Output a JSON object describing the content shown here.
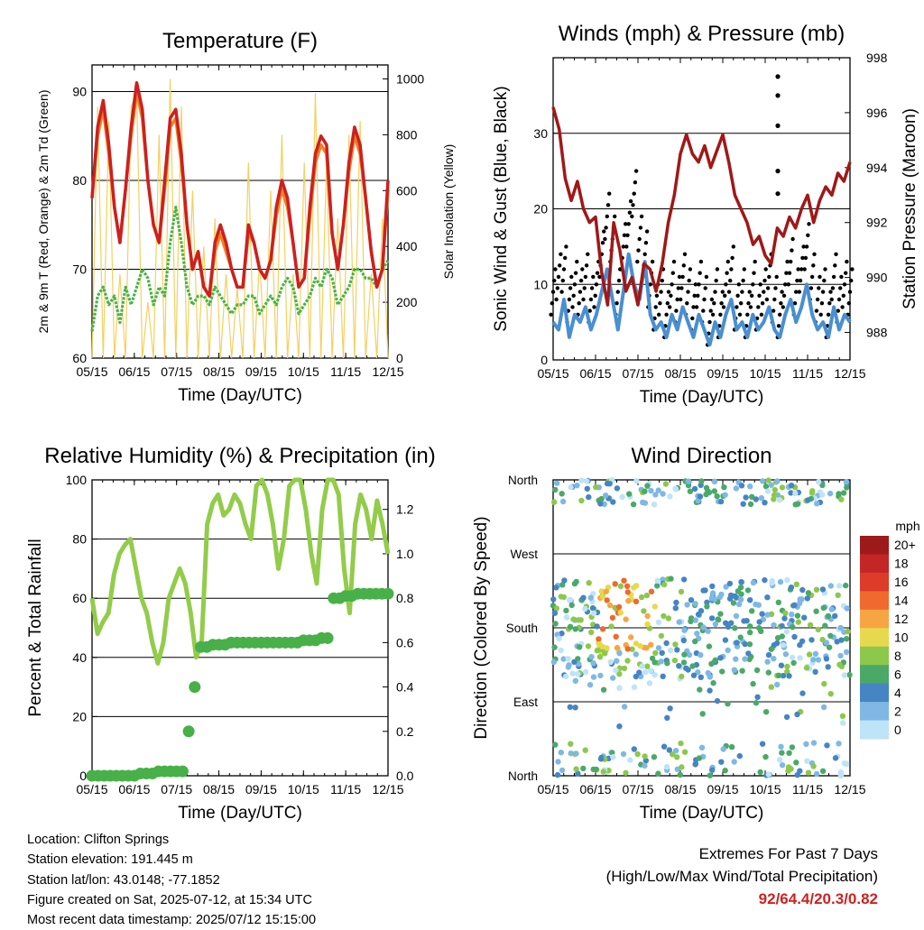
{
  "chart_data": [
    {
      "type": "line",
      "title": "Temperature (F)",
      "xlabel": "Time (Day/UTC)",
      "ylabel": "2m & 9m T (Red, Orange) & 2m Td (Green)",
      "y2label": "Solar Insolation (Yellow)",
      "x_ticks": [
        "05/15",
        "06/15",
        "07/15",
        "08/15",
        "09/15",
        "10/15",
        "11/15",
        "12/15"
      ],
      "ylim": [
        60,
        93
      ],
      "y_ticks": [
        60,
        70,
        80,
        90
      ],
      "y2lim": [
        0,
        1050
      ],
      "y2_ticks": [
        0,
        200,
        400,
        600,
        800,
        1000
      ],
      "grid_y": [
        70,
        80,
        90
      ],
      "series": [
        {
          "color": "#cc2020",
          "values": [
            78,
            86,
            89,
            84,
            77,
            73,
            79,
            86,
            91,
            88,
            80,
            75,
            73,
            80,
            87,
            88,
            83,
            75,
            70,
            72,
            68,
            67,
            73,
            75,
            73,
            70,
            68,
            68,
            75,
            73,
            70,
            69,
            71,
            77,
            80,
            78,
            73,
            68,
            69,
            77,
            83,
            85,
            84,
            74,
            70,
            75,
            82,
            86,
            84,
            78,
            72,
            68,
            70,
            80
          ]
        },
        {
          "color": "#f07f22",
          "values": [
            78,
            85,
            88,
            83,
            77,
            73,
            79,
            85,
            90,
            87,
            80,
            75,
            73,
            79,
            86,
            87,
            82,
            75,
            70,
            72,
            68,
            67,
            72,
            74,
            72,
            70,
            68,
            68,
            74,
            73,
            70,
            69,
            71,
            76,
            79,
            77,
            73,
            68,
            69,
            76,
            82,
            84,
            83,
            74,
            70,
            75,
            81,
            85,
            83,
            78,
            72,
            68,
            70,
            79
          ]
        },
        {
          "color": "#4ab34a",
          "values": [
            63,
            67,
            68,
            66,
            67,
            64,
            68,
            66,
            68,
            70,
            69,
            66,
            68,
            67,
            73,
            77,
            73,
            68,
            66,
            67,
            67,
            66,
            68,
            67,
            66,
            65,
            66,
            66,
            67,
            67,
            65,
            66,
            67,
            66,
            68,
            69,
            68,
            65,
            66,
            67,
            69,
            68,
            70,
            69,
            66,
            67,
            68,
            70,
            70,
            69,
            69,
            68,
            70,
            71
          ]
        },
        {
          "color": "#f3d060",
          "values": [
            0,
            900,
            0,
            850,
            0,
            300,
            0,
            900,
            950,
            0,
            200,
            0,
            800,
            0,
            1000,
            0,
            900,
            0,
            600,
            0,
            400,
            0,
            500,
            0,
            300,
            0,
            250,
            0,
            700,
            0,
            350,
            0,
            600,
            0,
            800,
            0,
            300,
            0,
            700,
            0,
            950,
            0,
            700,
            0,
            500,
            0,
            800,
            0,
            850,
            0,
            300,
            0,
            500,
            0
          ]
        }
      ]
    },
    {
      "type": "line",
      "title": "Winds (mph) & Pressure (mb)",
      "xlabel": "Time (Day/UTC)",
      "ylabel": "Sonic Wind & Gust (Blue, Black)",
      "y2label": "Station Pressure (Maroon)",
      "x_ticks": [
        "05/15",
        "06/15",
        "07/15",
        "08/15",
        "09/15",
        "10/15",
        "11/15",
        "12/15"
      ],
      "ylim": [
        0,
        40
      ],
      "y_ticks": [
        0,
        10,
        20,
        30
      ],
      "y2lim": [
        987.0,
        998.0
      ],
      "y2_ticks": [
        988,
        990,
        992,
        994,
        996,
        998
      ],
      "grid_y": [
        10,
        20,
        30
      ],
      "series": [
        {
          "color": "#4a8fd0",
          "values": [
            5,
            4,
            8,
            3,
            6,
            5,
            7,
            4,
            6,
            9,
            12,
            8,
            4,
            9,
            14,
            10,
            8,
            13,
            6,
            4,
            5,
            3,
            6,
            4,
            7,
            5,
            3,
            6,
            4,
            2,
            5,
            3,
            6,
            8,
            4,
            5,
            3,
            6,
            4,
            5,
            7,
            4,
            3,
            6,
            8,
            5,
            7,
            10,
            6,
            4,
            5,
            3,
            7,
            4,
            6,
            5
          ]
        },
        {
          "color": "#000000",
          "values": [
            9,
            11,
            12,
            8,
            10,
            9,
            11,
            8,
            10,
            14,
            19,
            16,
            9,
            15,
            18,
            22,
            16,
            14,
            10,
            7,
            9,
            6,
            10,
            8,
            11,
            9,
            7,
            10,
            8,
            5,
            9,
            6,
            10,
            12,
            7,
            9,
            6,
            10,
            7,
            9,
            11,
            8,
            6,
            10,
            13,
            9,
            12,
            15,
            11,
            8,
            9,
            6,
            11,
            8,
            10,
            9
          ]
        },
        {
          "color": "#a01818",
          "values": [
            996.2,
            995.4,
            993.6,
            992.8,
            993.5,
            992.5,
            992.0,
            992.2,
            990.2,
            989.0,
            992.0,
            991.0,
            989.5,
            990.0,
            989.0,
            990.5,
            990.3,
            989.5,
            990.5,
            992.0,
            993.0,
            994.5,
            995.2,
            994.5,
            994.2,
            994.8,
            994.0,
            994.6,
            995.2,
            994.2,
            993.0,
            992.5,
            992.0,
            991.2,
            991.5,
            990.8,
            990.5,
            991.8,
            991.5,
            992.2,
            991.8,
            992.5,
            993.0,
            992.0,
            992.8,
            993.3,
            993.0,
            993.8,
            993.5,
            994.2
          ]
        }
      ],
      "gust_outliers": [
        37.5,
        35,
        31,
        25,
        22
      ]
    },
    {
      "type": "line",
      "title": "Relative Humidity (%) & Precipitation (in)",
      "xlabel": "Time (Day/UTC)",
      "ylabel": "Percent & Total Rainfall",
      "x_ticks": [
        "05/15",
        "06/15",
        "07/15",
        "08/15",
        "09/15",
        "10/15",
        "11/15",
        "12/15"
      ],
      "ylim": [
        0,
        100
      ],
      "y_ticks": [
        0,
        20,
        40,
        60,
        80,
        100
      ],
      "y2lim": [
        0.0,
        1.333
      ],
      "y2_ticks": [
        "0.0",
        "0.2",
        "0.4",
        "0.6",
        "0.8",
        "1.0",
        "1.2"
      ],
      "grid_y": [
        20,
        40,
        60,
        80
      ],
      "series": [
        {
          "color": "#92cc4a",
          "name_rh": true,
          "values": [
            60,
            48,
            52,
            55,
            68,
            75,
            78,
            80,
            70,
            60,
            55,
            45,
            38,
            45,
            60,
            65,
            70,
            65,
            55,
            40,
            45,
            85,
            92,
            95,
            88,
            90,
            95,
            92,
            85,
            80,
            98,
            100,
            95,
            85,
            70,
            80,
            98,
            100,
            100,
            90,
            75,
            65,
            90,
            100,
            100,
            95,
            70,
            55,
            85,
            95,
            90,
            80,
            93,
            85,
            75
          ]
        },
        {
          "color": "#48b048",
          "values": [
            0,
            0,
            0,
            0,
            0,
            0,
            0,
            0,
            0.01,
            0.01,
            0.01,
            0.02,
            0.02,
            0.02,
            0.02,
            0.02,
            0.2,
            0.4,
            0.58,
            0.58,
            0.59,
            0.59,
            0.59,
            0.6,
            0.6,
            0.6,
            0.6,
            0.6,
            0.6,
            0.6,
            0.6,
            0.6,
            0.6,
            0.6,
            0.6,
            0.61,
            0.61,
            0.61,
            0.62,
            0.62,
            0.8,
            0.8,
            0.81,
            0.81,
            0.82,
            0.82,
            0.82,
            0.82,
            0.82,
            0.82
          ]
        }
      ]
    },
    {
      "type": "scatter",
      "title": "Wind Direction",
      "xlabel": "Time (Day/UTC)",
      "ylabel": "Direction (Colored By Speed)",
      "x_ticks": [
        "05/15",
        "06/15",
        "07/15",
        "08/15",
        "09/15",
        "10/15",
        "11/15",
        "12/15"
      ],
      "y_ticks": [
        "North",
        "East",
        "South",
        "West",
        "North"
      ],
      "ylim": [
        0,
        360
      ],
      "colorbar": {
        "title": "mph",
        "labels": [
          "20+",
          "18",
          "16",
          "14",
          "12",
          "10",
          "8",
          "6",
          "4",
          "2",
          "0"
        ],
        "colors": [
          "#9e1a1a",
          "#c42525",
          "#de3b2a",
          "#ef6a2c",
          "#f7a542",
          "#e6d94e",
          "#8cc84b",
          "#4aa967",
          "#4585c4",
          "#7fb8e5",
          "#bfe3f7"
        ]
      }
    }
  ],
  "info": {
    "location": "Location: Clifton Springs",
    "elevation": "Station elevation: 191.445 m",
    "latlon": "Station lat/lon: 43.0148; -77.1852",
    "created": "Figure created on Sat, 2025-07-12, at 15:34 UTC",
    "recent": "Most recent data timestamp: 2025/07/12 15:15:00"
  },
  "extremes": {
    "heading": "Extremes For Past 7 Days",
    "subheading": "(High/Low/Max Wind/Total Precipitation)",
    "values": "92/64.4/20.3/0.82"
  }
}
